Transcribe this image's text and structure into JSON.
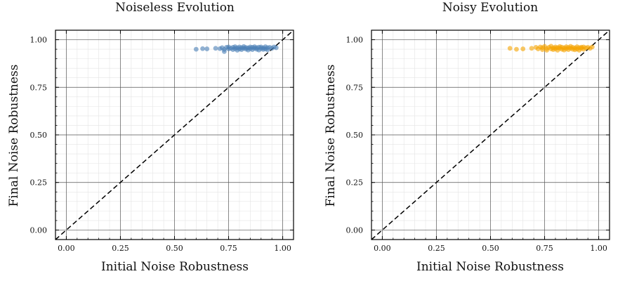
{
  "chart_data": [
    {
      "type": "scatter",
      "title": "Noiseless Evolution",
      "xlabel": "Initial Noise Robustness",
      "ylabel": "Final Noise Robustness",
      "xlim": [
        -0.05,
        1.05
      ],
      "ylim": [
        -0.05,
        1.05
      ],
      "xticks": [
        "0.00",
        "0.25",
        "0.50",
        "0.75",
        "1.00"
      ],
      "yticks": [
        "0.00",
        "0.25",
        "0.50",
        "0.75",
        "1.00"
      ],
      "grid": true,
      "diagonal": "y=x dashed",
      "color": "#4a7fb5",
      "series": [
        {
          "x": [
            0.6,
            0.63,
            0.65,
            0.69,
            0.71,
            0.72,
            0.73,
            0.73,
            0.74,
            0.75,
            0.75,
            0.76,
            0.77,
            0.77,
            0.78,
            0.78,
            0.79,
            0.79,
            0.8,
            0.8,
            0.81,
            0.81,
            0.82,
            0.82,
            0.83,
            0.83,
            0.84,
            0.84,
            0.85,
            0.85,
            0.86,
            0.86,
            0.87,
            0.87,
            0.88,
            0.88,
            0.89,
            0.89,
            0.9,
            0.9,
            0.91,
            0.91,
            0.92,
            0.92,
            0.93,
            0.93,
            0.94,
            0.95,
            0.96,
            0.97
          ],
          "y": [
            0.95,
            0.953,
            0.952,
            0.955,
            0.953,
            0.958,
            0.949,
            0.938,
            0.96,
            0.952,
            0.962,
            0.955,
            0.948,
            0.96,
            0.953,
            0.963,
            0.957,
            0.945,
            0.952,
            0.962,
            0.958,
            0.948,
            0.955,
            0.964,
            0.951,
            0.959,
            0.946,
            0.957,
            0.962,
            0.953,
            0.948,
            0.96,
            0.955,
            0.963,
            0.95,
            0.958,
            0.946,
            0.961,
            0.954,
            0.962,
            0.949,
            0.957,
            0.963,
            0.952,
            0.958,
            0.947,
            0.96,
            0.955,
            0.962,
            0.958
          ]
        }
      ]
    },
    {
      "type": "scatter",
      "title": "Noisy Evolution",
      "xlabel": "Initial Noise Robustness",
      "ylabel": "Final Noise Robustness",
      "xlim": [
        -0.05,
        1.05
      ],
      "ylim": [
        -0.05,
        1.05
      ],
      "xticks": [
        "0.00",
        "0.25",
        "0.50",
        "0.75",
        "1.00"
      ],
      "yticks": [
        "0.00",
        "0.25",
        "0.50",
        "0.75",
        "1.00"
      ],
      "grid": true,
      "diagonal": "y=x dashed",
      "color": "#f5a400",
      "series": [
        {
          "x": [
            0.59,
            0.62,
            0.65,
            0.69,
            0.71,
            0.72,
            0.73,
            0.74,
            0.74,
            0.75,
            0.76,
            0.76,
            0.77,
            0.78,
            0.78,
            0.79,
            0.79,
            0.8,
            0.8,
            0.81,
            0.81,
            0.82,
            0.82,
            0.83,
            0.83,
            0.84,
            0.84,
            0.85,
            0.85,
            0.86,
            0.86,
            0.87,
            0.87,
            0.88,
            0.88,
            0.89,
            0.89,
            0.9,
            0.9,
            0.91,
            0.91,
            0.92,
            0.92,
            0.93,
            0.93,
            0.94,
            0.95,
            0.96,
            0.97
          ],
          "y": [
            0.955,
            0.95,
            0.952,
            0.955,
            0.96,
            0.952,
            0.962,
            0.948,
            0.958,
            0.965,
            0.954,
            0.945,
            0.96,
            0.952,
            0.966,
            0.957,
            0.948,
            0.962,
            0.953,
            0.958,
            0.945,
            0.964,
            0.955,
            0.95,
            0.961,
            0.957,
            0.946,
            0.963,
            0.953,
            0.959,
            0.948,
            0.955,
            0.965,
            0.95,
            0.96,
            0.947,
            0.957,
            0.963,
            0.952,
            0.958,
            0.945,
            0.961,
            0.955,
            0.95,
            0.962,
            0.957,
            0.96,
            0.955,
            0.962
          ]
        }
      ]
    }
  ]
}
